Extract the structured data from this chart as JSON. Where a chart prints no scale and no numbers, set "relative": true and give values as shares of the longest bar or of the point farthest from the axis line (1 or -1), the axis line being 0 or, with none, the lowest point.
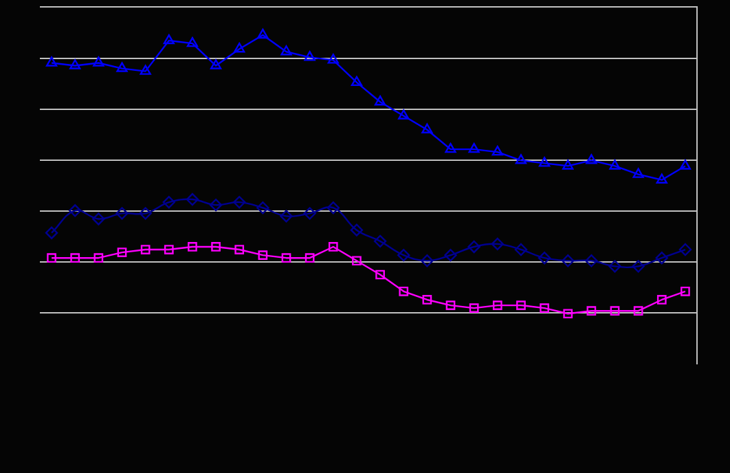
{
  "chart_data": {
    "type": "line",
    "relative": true,
    "grid": "y",
    "legend": false,
    "categories": [
      null,
      null,
      null,
      null,
      null,
      null,
      null,
      null,
      null,
      null,
      null,
      null,
      null,
      null,
      null,
      null,
      null,
      null,
      null,
      null,
      null,
      null,
      null,
      null,
      null,
      null,
      null,
      null
    ],
    "series": [
      {
        "color": "#0000ff",
        "marker": "triangle",
        "values": [
          0.9,
          0.89,
          0.9,
          0.88,
          0.87,
          0.98,
          0.97,
          0.89,
          0.95,
          1,
          0.94,
          0.92,
          0.91,
          0.83,
          0.76,
          0.71,
          0.66,
          0.59,
          0.59,
          0.58,
          0.55,
          0.54,
          0.53,
          0.55,
          0.53,
          0.5,
          0.48,
          0.53
        ]
      },
      {
        "color": "#000090",
        "marker": "diamond",
        "values": [
          0.29,
          0.37,
          0.34,
          0.36,
          0.36,
          0.4,
          0.41,
          0.39,
          0.4,
          0.38,
          0.35,
          0.36,
          0.38,
          0.3,
          0.26,
          0.21,
          0.19,
          0.21,
          0.24,
          0.25,
          0.23,
          0.2,
          0.19,
          0.19,
          0.17,
          0.17,
          0.2,
          0.23
        ]
      },
      {
        "color": "#ff00ff",
        "marker": "square",
        "values": [
          0.2,
          0.2,
          0.2,
          0.22,
          0.23,
          0.23,
          0.24,
          0.24,
          0.23,
          0.21,
          0.2,
          0.2,
          0.24,
          0.19,
          0.14,
          0.08,
          0.05,
          0.03,
          0.02,
          0.03,
          0.03,
          0.02,
          0,
          0.01,
          0.01,
          0.01,
          0.05,
          0.08
        ]
      }
    ]
  }
}
